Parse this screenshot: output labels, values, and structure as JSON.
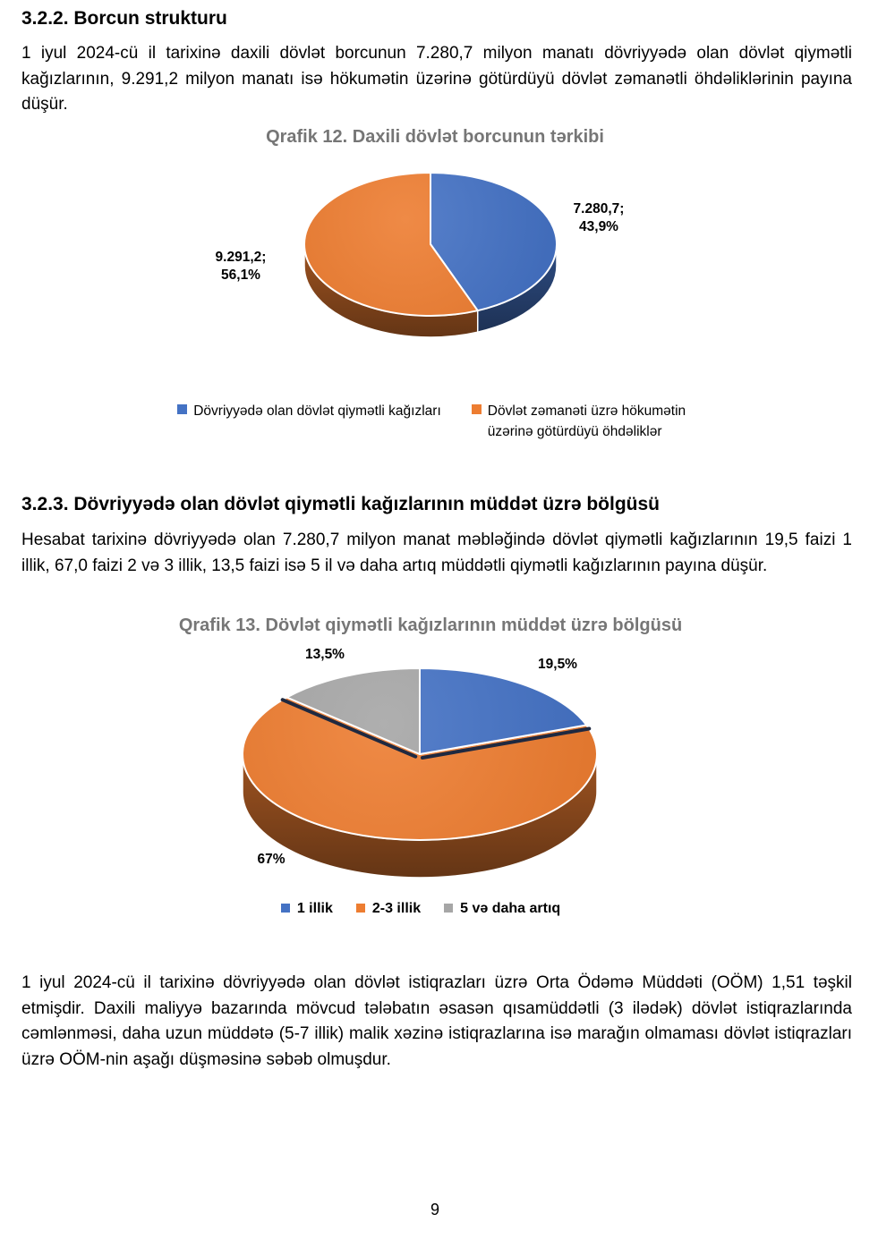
{
  "page": {
    "number": "9"
  },
  "sections": [
    {
      "heading": "3.2.2. Borcun strukturu",
      "paragraph": "1 iyul 2024-cü il tarixinə daxili dövlət borcunun 7.280,7 milyon manatı dövriyyədə olan dövlət qiymətli kağızlarının, 9.291,2 milyon manatı isə hökumətin üzərinə götürdüyü dövlət zəmanətli öhdəliklərinin payına düşür."
    },
    {
      "heading": "3.2.3. Dövriyyədə olan dövlət qiymətli kağızlarının müddət üzrə bölgüsü",
      "paragraph": "Hesabat tarixinə dövriyyədə olan 7.280,7 milyon manat məbləğində dövlət qiymətli kağızlarının 19,5 faizi 1 illik, 67,0 faizi 2 və 3 illik, 13,5 faizi isə 5 il və daha artıq müddətli qiymətli kağızlarının payına düşür."
    }
  ],
  "closing_paragraph": "1 iyul 2024-cü il tarixinə dövriyyədə olan dövlət istiqrazları üzrə Orta Ödəmə Müddəti (OÖM) 1,51 təşkil etmişdir. Daxili maliyyə bazarında mövcud tələbatın əsasən qısamüddətli (3 ilədək) dövlət istiqrazlarında cəmlənməsi, daha uzun müddətə (5-7 illik) malik xəzinə istiqrazlarına isə marağın olmaması dövlət istiqrazları üzrə OÖM-nin aşağı düşməsinə səbəb olmuşdur.",
  "chart_data": [
    {
      "type": "pie",
      "style": "3d",
      "title": "Qrafik 12. Daxili dövlət borcunun tərkibi",
      "legend_position": "bottom",
      "slices": [
        {
          "label": "Dövriyyədə olan dövlət qiymətli kağızları",
          "value": 7280.7,
          "pct": 43.9,
          "color": "#4472C4"
        },
        {
          "label": "Dövlət zəmanəti üzrə hökumətin üzərinə götürdüyü öhdəliklər",
          "value": 9291.2,
          "pct": 56.1,
          "color": "#ED7D31"
        }
      ],
      "data_labels": [
        {
          "lines": [
            "7.280,7;",
            "43,9%"
          ]
        },
        {
          "lines": [
            "9.291,2;",
            "56,1%"
          ]
        }
      ]
    },
    {
      "type": "pie",
      "style": "3d",
      "title": "Qrafik 13. Dövlət qiymətli kağızlarının müddət üzrə bölgüsü",
      "legend_position": "bottom",
      "slices": [
        {
          "label": "1 illik",
          "pct": 19.5,
          "color": "#4472C4"
        },
        {
          "label": "2-3 illik",
          "pct": 67.0,
          "color": "#ED7D31"
        },
        {
          "label": "5 və daha artıq",
          "pct": 13.5,
          "color": "#A6A6A6"
        }
      ],
      "data_labels": [
        {
          "lines": [
            "19,5%"
          ]
        },
        {
          "lines": [
            "67%"
          ]
        },
        {
          "lines": [
            "13,5%"
          ]
        }
      ]
    }
  ]
}
